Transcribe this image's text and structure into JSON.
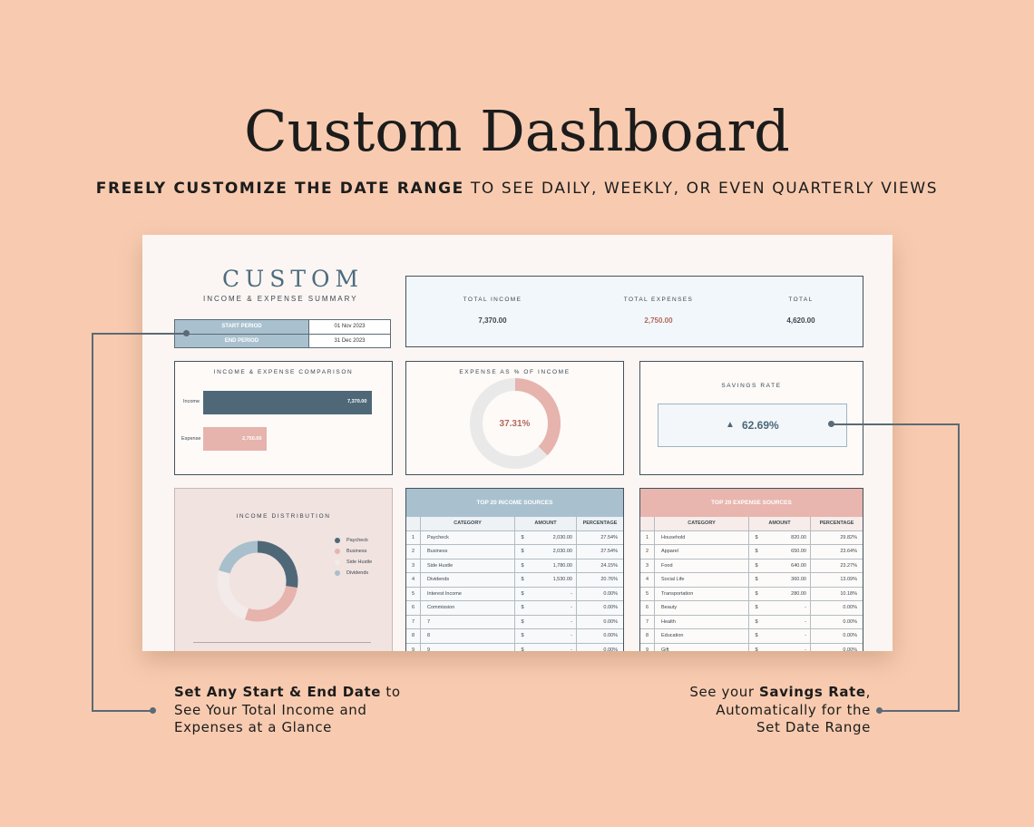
{
  "promo": {
    "title": "Custom Dashboard",
    "subtitle_bold": "FREELY CUSTOMIZE THE DATE RANGE",
    "subtitle_rest": " TO SEE DAILY, WEEKLY, OR EVEN QUARTERLY VIEWS"
  },
  "dashboard": {
    "title": "CUSTOM",
    "subtitle": "INCOME & EXPENSE SUMMARY",
    "period": {
      "start_label": "START PERIOD",
      "start_value": "01 Nov 2023",
      "end_label": "END PERIOD",
      "end_value": "31 Dec 2023"
    },
    "totals": {
      "income_label": "TOTAL INCOME",
      "income_value": "7,370.00",
      "expenses_label": "TOTAL EXPENSES",
      "expenses_value": "2,750.00",
      "total_label": "TOTAL",
      "total_value": "4,620.00"
    },
    "comparison": {
      "title": "INCOME & EXPENSE COMPARISON",
      "income_label": "Income",
      "income_value": "7,370.00",
      "expense_label": "Expense",
      "expense_value": "2,750.00"
    },
    "expense_pct": {
      "title": "EXPENSE AS % OF INCOME",
      "value": "37.31%",
      "fraction": 0.3731
    },
    "savings": {
      "title": "SAVINGS RATE",
      "arrow": "▲",
      "value": "62.69%"
    },
    "distribution": {
      "title": "INCOME DISTRIBUTION",
      "legend": [
        "Paycheck",
        "Business",
        "Side Hustle",
        "Dividends"
      ],
      "shares": [
        27.54,
        27.54,
        24.15,
        20.76
      ]
    },
    "income_table": {
      "title": "TOP 20 INCOME SOURCES",
      "col_category": "CATEGORY",
      "col_amount": "AMOUNT",
      "col_percentage": "PERCENTAGE",
      "currency": "$",
      "rows": [
        {
          "n": "1",
          "category": "Paycheck",
          "amount": "2,030.00",
          "pct": "27.54%"
        },
        {
          "n": "2",
          "category": "Business",
          "amount": "2,030.00",
          "pct": "27.54%"
        },
        {
          "n": "3",
          "category": "Side Hustle",
          "amount": "1,780.00",
          "pct": "24.15%"
        },
        {
          "n": "4",
          "category": "Dividends",
          "amount": "1,530.00",
          "pct": "20.76%"
        },
        {
          "n": "5",
          "category": "Interest Income",
          "amount": "-",
          "pct": "0.00%"
        },
        {
          "n": "6",
          "category": "Commission",
          "amount": "-",
          "pct": "0.00%"
        },
        {
          "n": "7",
          "category": "7",
          "amount": "-",
          "pct": "0.00%"
        },
        {
          "n": "8",
          "category": "8",
          "amount": "-",
          "pct": "0.00%"
        },
        {
          "n": "9",
          "category": "9",
          "amount": "-",
          "pct": "0.00%"
        }
      ]
    },
    "expense_table": {
      "title": "TOP 20 EXPENSE SOURCES",
      "col_category": "CATEGORY",
      "col_amount": "AMOUNT",
      "col_percentage": "PERCENTAGE",
      "currency": "$",
      "rows": [
        {
          "n": "1",
          "category": "Household",
          "amount": "820.00",
          "pct": "29.82%"
        },
        {
          "n": "2",
          "category": "Apparel",
          "amount": "650.00",
          "pct": "23.64%"
        },
        {
          "n": "3",
          "category": "Food",
          "amount": "640.00",
          "pct": "23.27%"
        },
        {
          "n": "4",
          "category": "Social Life",
          "amount": "360.00",
          "pct": "13.09%"
        },
        {
          "n": "5",
          "category": "Transportation",
          "amount": "280.00",
          "pct": "10.18%"
        },
        {
          "n": "6",
          "category": "Beauty",
          "amount": "-",
          "pct": "0.00%"
        },
        {
          "n": "7",
          "category": "Health",
          "amount": "-",
          "pct": "0.00%"
        },
        {
          "n": "8",
          "category": "Education",
          "amount": "-",
          "pct": "0.00%"
        },
        {
          "n": "9",
          "category": "Gift",
          "amount": "-",
          "pct": "0.00%"
        }
      ]
    }
  },
  "callouts": {
    "left_bold": "Set Any Start & End Date",
    "left_rest": " to",
    "left_line2": "See Your Total Income and",
    "left_line3": "Expenses at a Glance",
    "right_pre": "See your ",
    "right_bold": "Savings Rate",
    "right_post": ",",
    "right_line2": "Automatically for the",
    "right_line3": "Set Date Range"
  },
  "colors": {
    "background": "#f8cbb0",
    "income_blue": "#4f6878",
    "expense_pink": "#e6b3ad",
    "income_header": "#a9c1cf",
    "expense_header": "#e8b6ae",
    "ring_gray": "#e9e9e9",
    "dividends": "#a8bfcc",
    "side_hustle": "#f2ebea"
  }
}
